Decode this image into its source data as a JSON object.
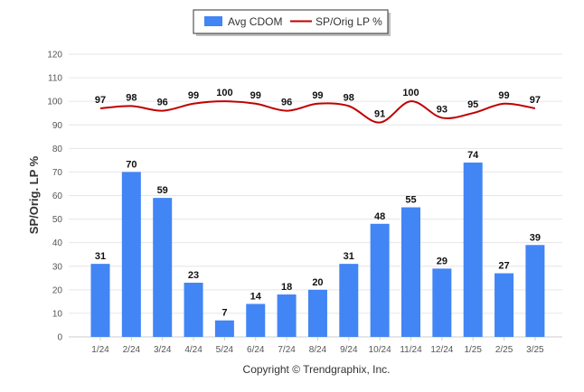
{
  "chart_data": {
    "type": "bar",
    "categories": [
      "1/24",
      "2/24",
      "3/24",
      "4/24",
      "5/24",
      "6/24",
      "7/24",
      "8/24",
      "9/24",
      "10/24",
      "11/24",
      "12/24",
      "1/25",
      "2/25",
      "3/25"
    ],
    "series": [
      {
        "name": "Avg CDOM",
        "type": "bar",
        "color": "#4285f4",
        "values": [
          31,
          70,
          59,
          23,
          7,
          14,
          18,
          20,
          31,
          48,
          55,
          29,
          74,
          27,
          39
        ]
      },
      {
        "name": "SP/Orig LP %",
        "type": "line",
        "color": "#c00000",
        "values": [
          97,
          98,
          96,
          99,
          100,
          99,
          96,
          99,
          98,
          91,
          100,
          93,
          95,
          99,
          97
        ]
      }
    ],
    "title": "",
    "xlabel": "",
    "ylabel": "SP/Orig. LP %",
    "ylim": [
      0,
      120
    ],
    "yticks": [
      0,
      10,
      20,
      30,
      40,
      50,
      60,
      70,
      80,
      90,
      100,
      110,
      120
    ],
    "grid": true,
    "legend_position": "top-center",
    "credit": "Copyright © Trendgraphix, Inc.",
    "colors": {
      "grid": "#e6e6e6",
      "axis": "#cccccc",
      "legend_border": "#333333"
    }
  }
}
